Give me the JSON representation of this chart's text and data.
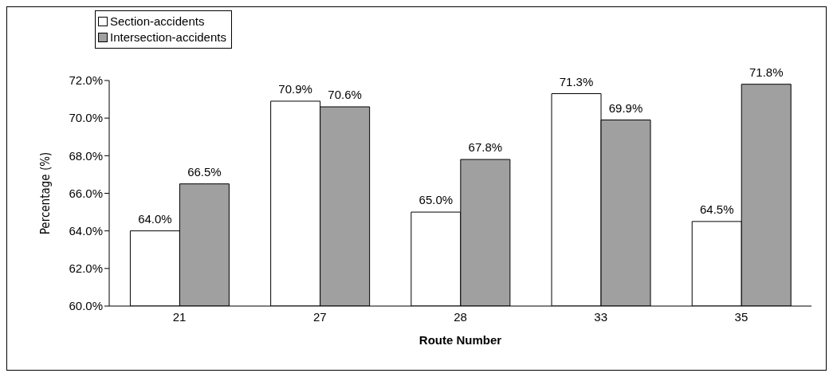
{
  "chart_data": {
    "type": "bar",
    "ylabel": "Percentage (%)",
    "xlabel": "Route Number",
    "categories": [
      "21",
      "27",
      "28",
      "33",
      "35"
    ],
    "series": [
      {
        "name": "Section-accidents",
        "color": "#ffffff",
        "values": [
          64.0,
          70.9,
          65.0,
          71.3,
          64.5
        ],
        "value_labels": [
          "64.0%",
          "70.9%",
          "65.0%",
          "71.3%",
          "64.5%"
        ]
      },
      {
        "name": "Intersection-accidents",
        "color": "#a0a0a0",
        "values": [
          66.5,
          70.6,
          67.8,
          69.9,
          71.8
        ],
        "value_labels": [
          "66.5%",
          "70.6%",
          "67.8%",
          "69.9%",
          "71.8%"
        ]
      }
    ],
    "ylim": [
      60,
      72
    ],
    "yticks": [
      {
        "value": 60,
        "label": "60.0%"
      },
      {
        "value": 62,
        "label": "62.0%"
      },
      {
        "value": 64,
        "label": "64.0%"
      },
      {
        "value": 66,
        "label": "66.0%"
      },
      {
        "value": 68,
        "label": "68.0%"
      },
      {
        "value": 70,
        "label": "70.0%"
      },
      {
        "value": 72,
        "label": "72.0%"
      }
    ],
    "grid": false,
    "legend": "top left"
  }
}
